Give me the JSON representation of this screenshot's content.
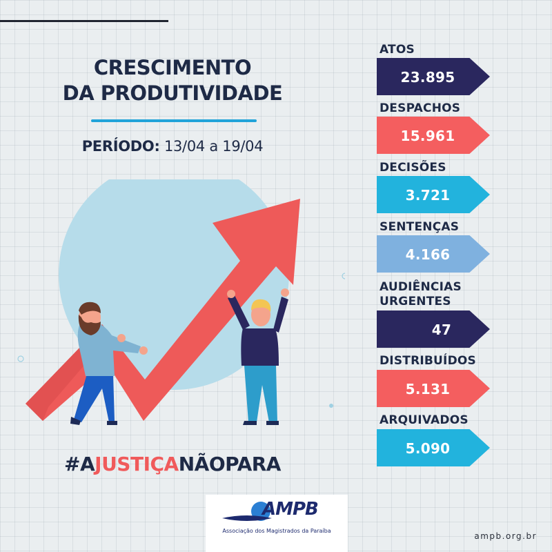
{
  "header": {
    "title_line1": "CRESCIMENTO",
    "title_line2": "DA PRODUTIVIDADE",
    "period_label": "PERÍODO:",
    "period_value": "13/04 a 19/04"
  },
  "stats": [
    {
      "label": "ATOS",
      "value": "23.895",
      "color": "#2a275e"
    },
    {
      "label": "DESPACHOS",
      "value": "15.961",
      "color": "#f45e5f"
    },
    {
      "label": "DECISÕES",
      "value": "3.721",
      "color": "#22b3dd"
    },
    {
      "label": "SENTENÇAS",
      "value": "4.166",
      "color": "#7fb1df"
    },
    {
      "label_line1": "AUDIÊNCIAS",
      "label_line2": "URGENTES",
      "value": "47",
      "color": "#2a275e"
    },
    {
      "label": "DISTRIBUÍDOS",
      "value": "5.131",
      "color": "#f45e5f"
    },
    {
      "label": "ARQUIVADOS",
      "value": "5.090",
      "color": "#22b3dd"
    }
  ],
  "hashtag": {
    "part1": "#A",
    "part2": "JUSTIÇA",
    "part3": "NÃOPARA"
  },
  "footer": {
    "logo_name": "AMPB",
    "logo_subtitle": "Associação dos Magistrados da Paraíba",
    "website": "ampb.org.br"
  },
  "icons": [
    "growth-arrow-illustration",
    "people-illustration",
    "ampb-logo-icon"
  ]
}
